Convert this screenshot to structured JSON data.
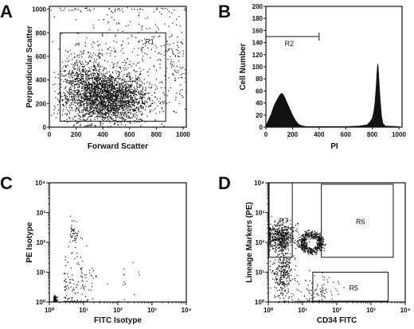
{
  "panels": {
    "A": {
      "letter": "A"
    },
    "B": {
      "letter": "B"
    },
    "C": {
      "letter": "C"
    },
    "D": {
      "letter": "D"
    }
  },
  "chart_data": [
    {
      "id": "A",
      "type": "scatter",
      "xlabel": "Forward Scatter",
      "ylabel": "Perpendicular Scatter",
      "xlim": [
        0,
        1024
      ],
      "ylim": [
        0,
        1024
      ],
      "xticks": [
        0,
        200,
        400,
        600,
        800,
        1000
      ],
      "yticks": [
        0,
        200,
        400,
        600,
        800,
        1000
      ],
      "gates": [
        {
          "label": "R1",
          "x": [
            80,
            870
          ],
          "y": [
            50,
            800
          ]
        }
      ],
      "clusters": [
        {
          "cx": 430,
          "cy": 250,
          "sx": 150,
          "sy": 110,
          "n": 2600
        },
        {
          "cx": 250,
          "cy": 400,
          "sx": 90,
          "sy": 120,
          "n": 500
        },
        {
          "cx": 600,
          "cy": 650,
          "sx": 250,
          "sy": 180,
          "n": 250
        },
        {
          "cx": 950,
          "cy": 500,
          "sx": 60,
          "sy": 280,
          "n": 120
        },
        {
          "cx": 500,
          "cy": 1000,
          "sx": 300,
          "sy": 10,
          "n": 60
        }
      ]
    },
    {
      "id": "B",
      "type": "area",
      "xlabel": "PI",
      "ylabel": "Cell Number",
      "xlim": [
        0,
        1024
      ],
      "ylim": [
        0,
        200
      ],
      "xticks": [
        0,
        200,
        400,
        600,
        800,
        1000
      ],
      "yticks": [
        0,
        20,
        40,
        60,
        80,
        100,
        120,
        140,
        160,
        180,
        200
      ],
      "marker": {
        "label": "R2",
        "x": [
          0,
          400
        ],
        "y": 150
      },
      "x": [
        0,
        20,
        40,
        60,
        80,
        100,
        110,
        120,
        130,
        140,
        160,
        180,
        200,
        220,
        240,
        260,
        300,
        400,
        500,
        600,
        700,
        760,
        780,
        800,
        810,
        820,
        830,
        835,
        840,
        845,
        850,
        860,
        870,
        880,
        900,
        1000
      ],
      "y": [
        2,
        12,
        22,
        35,
        44,
        52,
        55,
        56,
        54,
        50,
        40,
        30,
        20,
        12,
        6,
        3,
        1,
        1,
        1,
        1,
        2,
        4,
        8,
        15,
        24,
        40,
        70,
        90,
        105,
        100,
        80,
        45,
        18,
        6,
        2,
        1
      ]
    },
    {
      "id": "C",
      "type": "scatter",
      "xlabel": "FITC Isotype",
      "ylabel": "PE Isotype",
      "xscale": "log",
      "yscale": "log",
      "xlim": [
        1,
        10000
      ],
      "ylim": [
        1,
        10000
      ],
      "xticks": [
        "10⁰",
        "10¹",
        "10²",
        "10³",
        "10⁴"
      ],
      "yticks": [
        "10⁰",
        "10¹",
        "10²",
        "10³",
        "10⁴"
      ],
      "clusters": [
        {
          "cx": 0.12,
          "cy": 0.1,
          "sx": 0.05,
          "sy": 0.05,
          "n": 130
        },
        {
          "cx": 0.4,
          "cy": 0.45,
          "sx": 0.45,
          "sy": 0.75,
          "n": 130
        },
        {
          "cx": 0.6,
          "cy": 2.3,
          "sx": 0.22,
          "sy": 0.22,
          "n": 40
        },
        {
          "cx": 0.8,
          "cy": 0.6,
          "sx": 0.35,
          "sy": 0.35,
          "n": 35
        },
        {
          "cx": 2.0,
          "cy": 0.7,
          "sx": 0.5,
          "sy": 0.5,
          "n": 12
        }
      ]
    },
    {
      "id": "D",
      "type": "scatter",
      "xlabel": "CD34 FITC",
      "ylabel": "Lineage Markers (PE)",
      "xscale": "log",
      "yscale": "log",
      "xlim": [
        1,
        10000
      ],
      "ylim": [
        1,
        10000
      ],
      "xticks": [
        "10⁰",
        "10¹",
        "10²",
        "10³",
        "10⁴"
      ],
      "yticks": [
        "10⁰",
        "10¹",
        "10²",
        "10³",
        "10⁴"
      ],
      "gates": [
        {
          "label": "R7",
          "x": [
            0.0,
            0.7
          ],
          "y": [
            1.5,
            4.0
          ]
        },
        {
          "label": "R6",
          "x": [
            1.55,
            3.65
          ],
          "y": [
            1.5,
            3.95
          ]
        },
        {
          "label": "R5",
          "x": [
            1.3,
            3.5
          ],
          "y": [
            -0.1,
            1.0
          ]
        }
      ],
      "clusters": [
        {
          "cx": 0.35,
          "cy": 2.2,
          "sx": 0.2,
          "sy": 0.22,
          "n": 550
        },
        {
          "cx": 0.42,
          "cy": 1.0,
          "sx": 0.14,
          "sy": 0.45,
          "n": 320
        },
        {
          "cx": 1.45,
          "cy": 0.15,
          "sx": 0.3,
          "sy": 0.4,
          "n": 140
        }
      ],
      "ring": {
        "cx": 1.25,
        "cy": 2.0,
        "r": 0.28,
        "n": 550
      }
    }
  ]
}
